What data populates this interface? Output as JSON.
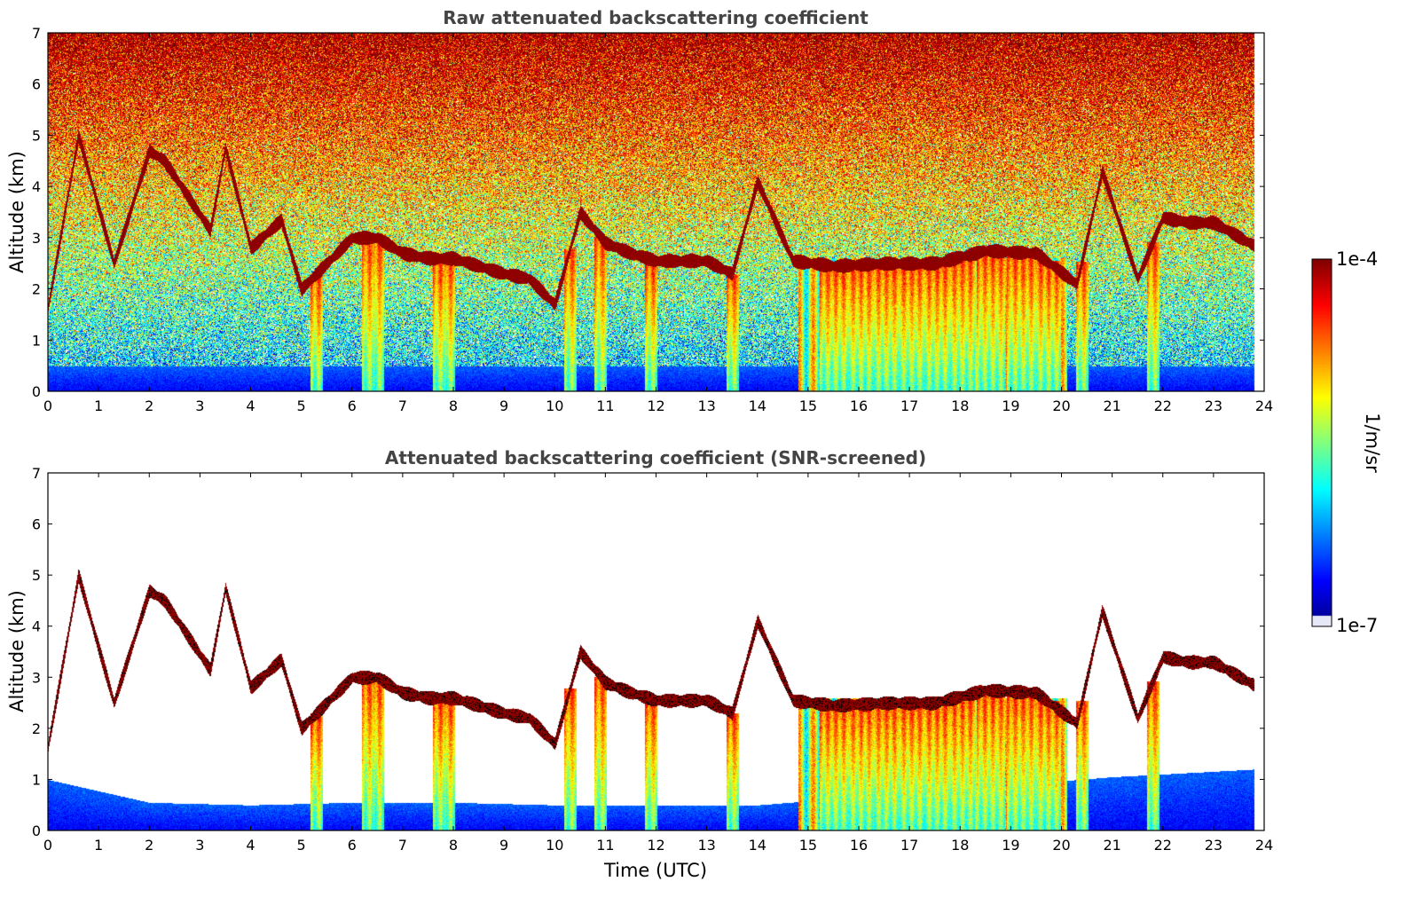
{
  "chart_data": [
    {
      "type": "heatmap",
      "title": "Raw attenuated backscattering coefficient",
      "xlabel": "",
      "ylabel": "Altitude (km)",
      "xlim": [
        0,
        24
      ],
      "ylim": [
        0,
        7
      ],
      "x_ticks": [
        "0",
        "1",
        "2",
        "3",
        "4",
        "5",
        "6",
        "7",
        "8",
        "9",
        "10",
        "11",
        "12",
        "13",
        "14",
        "15",
        "16",
        "17",
        "18",
        "19",
        "20",
        "21",
        "22",
        "23",
        "24"
      ],
      "y_ticks": [
        "0",
        "1",
        "2",
        "3",
        "4",
        "5",
        "6",
        "7"
      ],
      "data_end_hour": 23.8,
      "features": {
        "surface_layer_top_km": 0.5,
        "noise_background": "increases with altitude, saturated above ~5 km",
        "cloud_layer": [
          [
            0.0,
            1.65
          ],
          [
            0.6,
            5.0
          ],
          [
            1.3,
            2.5
          ],
          [
            2.0,
            4.7
          ],
          [
            2.3,
            4.5
          ],
          [
            3.2,
            3.15
          ],
          [
            3.5,
            4.75
          ],
          [
            4.0,
            2.8
          ],
          [
            4.6,
            3.35
          ],
          [
            5.0,
            2.0
          ],
          [
            6.0,
            3.0
          ],
          [
            6.5,
            3.0
          ],
          [
            7.0,
            2.7
          ],
          [
            7.5,
            2.6
          ],
          [
            8.0,
            2.6
          ],
          [
            8.5,
            2.45
          ],
          [
            9.0,
            2.3
          ],
          [
            9.5,
            2.2
          ],
          [
            10.0,
            1.7
          ],
          [
            10.5,
            3.5
          ],
          [
            11.0,
            2.9
          ],
          [
            11.5,
            2.7
          ],
          [
            12.0,
            2.55
          ],
          [
            12.5,
            2.55
          ],
          [
            13.0,
            2.55
          ],
          [
            13.5,
            2.3
          ],
          [
            14.0,
            4.1
          ],
          [
            14.7,
            2.55
          ],
          [
            15.5,
            2.45
          ],
          [
            16.5,
            2.5
          ],
          [
            17.5,
            2.5
          ],
          [
            18.5,
            2.75
          ],
          [
            19.5,
            2.7
          ],
          [
            20.3,
            2.1
          ],
          [
            20.8,
            4.3
          ],
          [
            21.5,
            2.2
          ],
          [
            22.0,
            3.4
          ],
          [
            22.5,
            3.3
          ],
          [
            23.0,
            3.3
          ],
          [
            23.8,
            2.85
          ]
        ],
        "precipitation_streaks_hours": [
          5.3,
          6.3,
          6.5,
          7.7,
          7.9,
          10.3,
          10.9,
          11.9,
          13.5,
          15.5,
          16.0,
          16.5,
          17.0,
          17.5,
          18.0,
          18.6,
          19.2,
          19.7,
          20.4,
          21.8
        ]
      }
    },
    {
      "type": "heatmap",
      "title": "Attenuated backscattering coefficient (SNR-screened)",
      "xlabel": "Time (UTC)",
      "ylabel": "Altitude (km)",
      "xlim": [
        0,
        24
      ],
      "ylim": [
        0,
        7
      ],
      "x_ticks": [
        "0",
        "1",
        "2",
        "3",
        "4",
        "5",
        "6",
        "7",
        "8",
        "9",
        "10",
        "11",
        "12",
        "13",
        "14",
        "15",
        "16",
        "17",
        "18",
        "19",
        "20",
        "21",
        "22",
        "23",
        "24"
      ],
      "y_ticks": [
        "0",
        "1",
        "2",
        "3",
        "4",
        "5",
        "6",
        "7"
      ],
      "data_end_hour": 23.8,
      "features": {
        "boundary_layer_top_km": [
          [
            0,
            1.0
          ],
          [
            2,
            0.55
          ],
          [
            4,
            0.5
          ],
          [
            6,
            0.55
          ],
          [
            8,
            0.55
          ],
          [
            10,
            0.5
          ],
          [
            14,
            0.5
          ],
          [
            21,
            1.05
          ],
          [
            23.8,
            1.2
          ]
        ],
        "screened_out": "noise removed above boundary layer outside cloud and precipitation"
      }
    }
  ],
  "colorbar": {
    "label": "1/m/sr",
    "max_label": "1e-4",
    "min_label": "1e-7",
    "scale": "log",
    "colormap": "jet",
    "min_color": "#e6e8f8"
  }
}
